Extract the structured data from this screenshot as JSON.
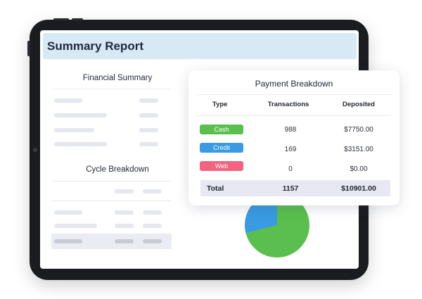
{
  "report": {
    "title": "Summary Report",
    "financial_summary_title": "Financial Summary",
    "cycle_breakdown_title": "Cycle Breakdown"
  },
  "payment_breakdown": {
    "title": "Payment Breakdown",
    "columns": [
      "Type",
      "Transactions",
      "Deposited"
    ],
    "rows": [
      {
        "type": "Cash",
        "transactions": "988",
        "deposited": "$7750.00",
        "color": "#5bbf4f"
      },
      {
        "type": "Credit",
        "transactions": "169",
        "deposited": "$3151.00",
        "color": "#3a9be3"
      },
      {
        "type": "Web",
        "transactions": "0",
        "deposited": "$0.00",
        "color": "#f2637f"
      }
    ],
    "total": {
      "label": "Total",
      "transactions": "1157",
      "deposited": "$10901.00"
    }
  },
  "pie": {
    "slices": [
      {
        "name": "Cash",
        "value": 7750.0,
        "color": "#5bbf4f"
      },
      {
        "name": "Credit",
        "value": 3151.0,
        "color": "#3a9be3"
      }
    ]
  },
  "colors": {
    "header_bg": "#d6e9f5",
    "tablet_frame": "#1b1c1f",
    "total_row_bg": "#e8e8f2"
  }
}
